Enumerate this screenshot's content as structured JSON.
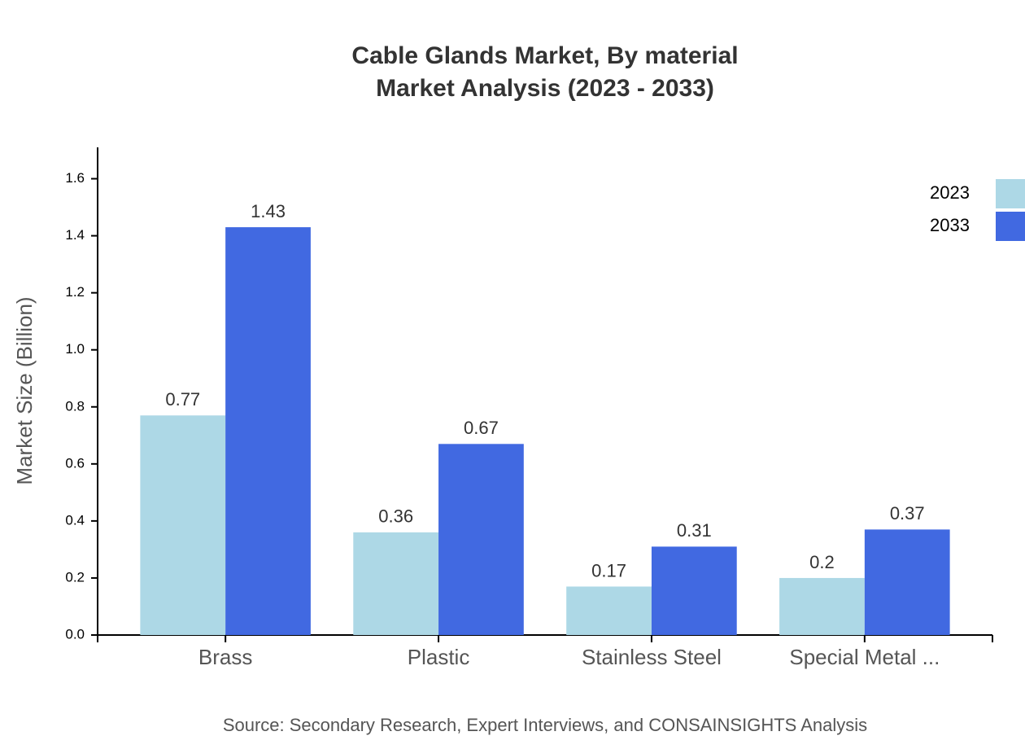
{
  "chart_data": {
    "type": "bar",
    "title": "Cable Glands Market, By material",
    "subtitle": "Market Analysis (2023 - 2033)",
    "y_label": "Market Size (Billion)",
    "source": "Source: Secondary Research, Expert Interviews, and CONSAINSIGHTS Analysis",
    "categories": [
      "Brass",
      "Plastic",
      "Stainless Steel",
      "Special Metal ..."
    ],
    "series": [
      {
        "name": "2023",
        "color": "#add8e6",
        "values": [
          0.77,
          0.36,
          0.17,
          0.2
        ]
      },
      {
        "name": "2033",
        "color": "#4169e1",
        "values": [
          1.43,
          0.67,
          0.31,
          0.37
        ]
      }
    ],
    "ylim": [
      0,
      1.71
    ],
    "yticks": [
      {
        "value": 0,
        "label": "0.0"
      },
      0.2,
      0.4,
      0.6,
      0.8,
      {
        "value": 1,
        "label": "1.0"
      },
      1.2,
      1.4,
      1.6
    ],
    "grid": false,
    "legend": "top-right"
  }
}
